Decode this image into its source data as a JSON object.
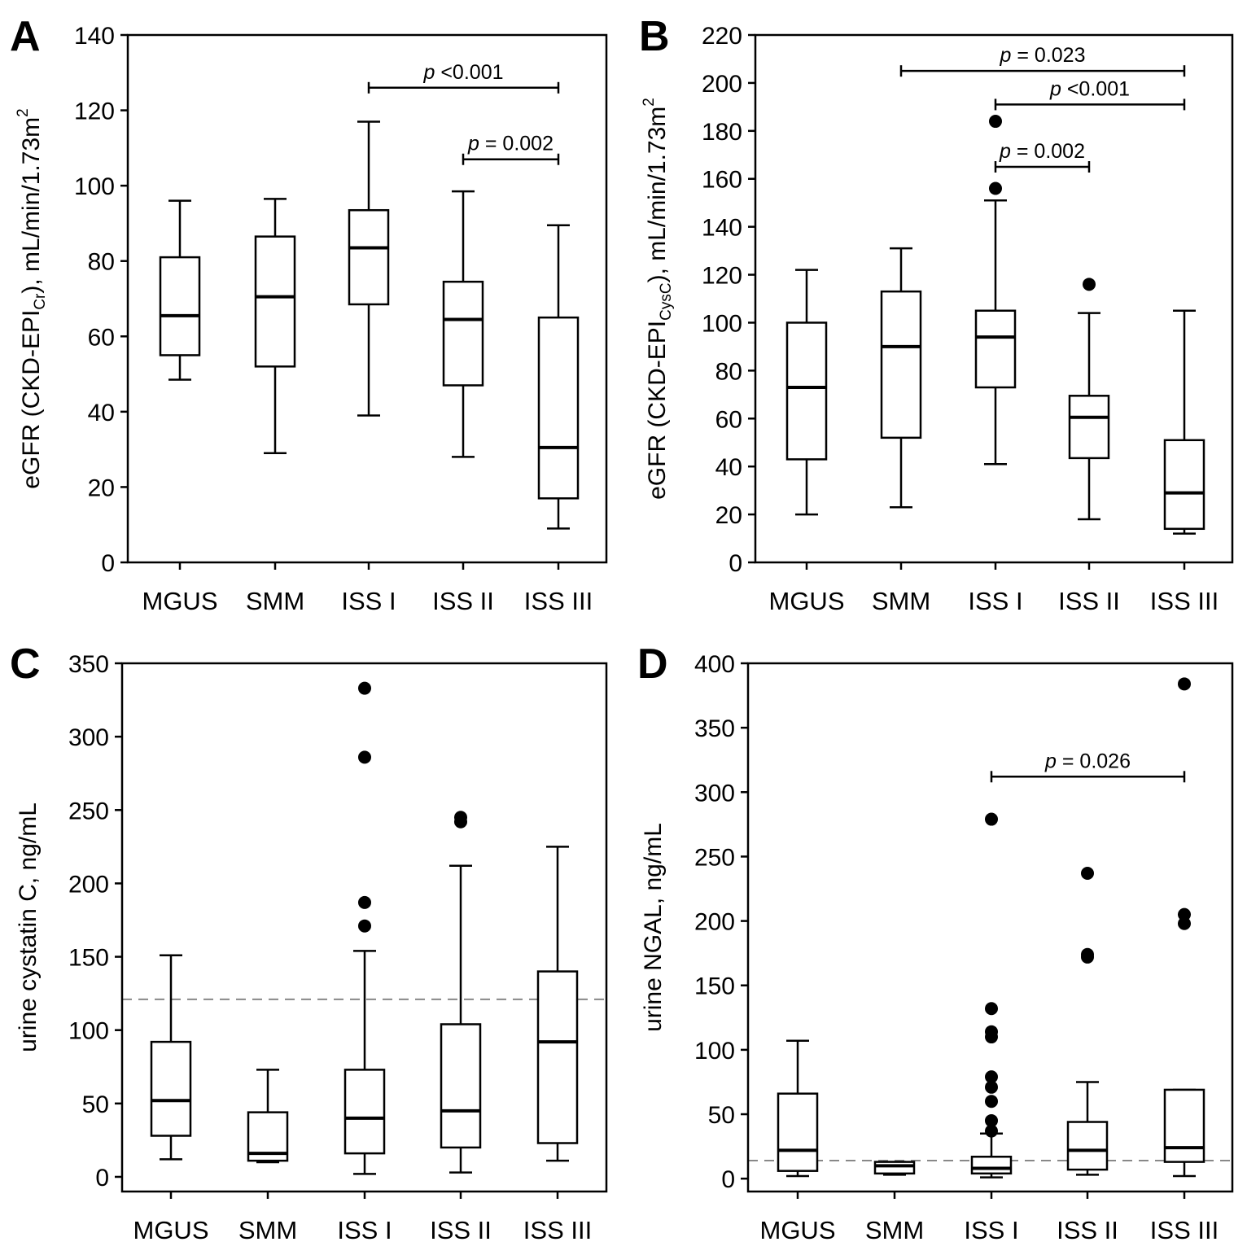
{
  "chart_data": [
    {
      "type": "box",
      "panel": "A",
      "ylabel": "eGFR (CKD-EPI",
      "ylabel_sub": "Cr",
      "ylabel_tail": "), mL/min/1.73m",
      "ylabel_sup": "2",
      "ylim": [
        0,
        140
      ],
      "yticks": [
        0,
        20,
        40,
        60,
        80,
        100,
        120,
        140
      ],
      "categories": [
        "MGUS",
        "SMM",
        "ISS I",
        "ISS II",
        "ISS III"
      ],
      "boxes": [
        {
          "min": 48.5,
          "q1": 55,
          "median": 65.5,
          "q3": 81,
          "max": 96,
          "outliers": []
        },
        {
          "min": 29,
          "q1": 52,
          "median": 70.5,
          "q3": 86.5,
          "max": 96.5,
          "outliers": []
        },
        {
          "min": 39,
          "q1": 68.5,
          "median": 83.5,
          "q3": 93.5,
          "max": 117,
          "outliers": []
        },
        {
          "min": 28,
          "q1": 47,
          "median": 64.5,
          "q3": 74.5,
          "max": 98.5,
          "outliers": []
        },
        {
          "min": 9,
          "q1": 17,
          "median": 30.5,
          "q3": 65,
          "max": 89.5,
          "outliers": []
        }
      ],
      "comparisons": [
        {
          "from": 2,
          "to": 4,
          "y": 126,
          "p": "p",
          "text": " <0.001"
        },
        {
          "from": 3,
          "to": 4,
          "y": 107,
          "p": "p",
          "text": " = 0.002"
        }
      ]
    },
    {
      "type": "box",
      "panel": "B",
      "ylabel": "eGFR (CKD-EPI",
      "ylabel_sub": "CysC",
      "ylabel_tail": "), mL/min/1.73m",
      "ylabel_sup": "2",
      "ylim": [
        0,
        220
      ],
      "yticks": [
        0,
        20,
        40,
        60,
        80,
        100,
        120,
        140,
        160,
        180,
        200,
        220
      ],
      "categories": [
        "MGUS",
        "SMM",
        "ISS I",
        "ISS II",
        "ISS III"
      ],
      "boxes": [
        {
          "min": 20,
          "q1": 43,
          "median": 73,
          "q3": 100,
          "max": 122,
          "outliers": []
        },
        {
          "min": 23,
          "q1": 52,
          "median": 90,
          "q3": 113,
          "max": 131,
          "outliers": []
        },
        {
          "min": 41,
          "q1": 73,
          "median": 94,
          "q3": 105,
          "max": 151,
          "outliers": [
            156,
            184
          ]
        },
        {
          "min": 18,
          "q1": 43.5,
          "median": 60.5,
          "q3": 69.5,
          "max": 104,
          "outliers": [
            116
          ]
        },
        {
          "min": 12,
          "q1": 14,
          "median": 29,
          "q3": 51,
          "max": 105,
          "outliers": []
        }
      ],
      "comparisons": [
        {
          "from": 1,
          "to": 4,
          "y": 205,
          "p": "p",
          "text": " = 0.023"
        },
        {
          "from": 2,
          "to": 4,
          "y": 191,
          "p": "p",
          "text": " <0.001"
        },
        {
          "from": 2,
          "to": 3,
          "y": 165,
          "p": "p",
          "text": " = 0.002"
        }
      ]
    },
    {
      "type": "box",
      "panel": "C",
      "ylabel": "urine cystatin C, ng/mL",
      "ylim": [
        -10,
        350
      ],
      "yticks": [
        0,
        50,
        100,
        150,
        200,
        250,
        300,
        350
      ],
      "ref_line": 121,
      "categories": [
        "MGUS",
        "SMM",
        "ISS I",
        "ISS II",
        "ISS III"
      ],
      "boxes": [
        {
          "min": 12,
          "q1": 28,
          "median": 52,
          "q3": 92,
          "max": 151,
          "outliers": []
        },
        {
          "min": 10,
          "q1": 11,
          "median": 16,
          "q3": 44,
          "max": 73,
          "outliers": []
        },
        {
          "min": 2,
          "q1": 16,
          "median": 40,
          "q3": 73,
          "max": 154,
          "outliers": [
            171,
            187,
            286,
            333
          ]
        },
        {
          "min": 3,
          "q1": 20,
          "median": 45,
          "q3": 104,
          "max": 212,
          "outliers": [
            242,
            245
          ]
        },
        {
          "min": 11,
          "q1": 23,
          "median": 92,
          "q3": 140,
          "max": 225,
          "outliers": []
        }
      ],
      "comparisons": []
    },
    {
      "type": "box",
      "panel": "D",
      "ylabel": "urine NGAL, ng/mL",
      "ylim": [
        -10,
        400
      ],
      "yticks": [
        0,
        50,
        100,
        150,
        200,
        250,
        300,
        350,
        400
      ],
      "ref_line": 14,
      "categories": [
        "MGUS",
        "SMM",
        "ISS I",
        "ISS II",
        "ISS III"
      ],
      "boxes": [
        {
          "min": 2,
          "q1": 6,
          "median": 22,
          "q3": 66,
          "max": 107,
          "outliers": []
        },
        {
          "min": 3,
          "q1": 4,
          "median": 10,
          "q3": 13,
          "max": 13,
          "outliers": []
        },
        {
          "min": 1,
          "q1": 4,
          "median": 8,
          "q3": 17,
          "max": 35,
          "outliers": [
            37,
            45,
            60,
            71,
            79,
            110,
            114,
            132,
            279
          ]
        },
        {
          "min": 3,
          "q1": 7,
          "median": 22,
          "q3": 44,
          "max": 75,
          "outliers": [
            172,
            174,
            237
          ]
        },
        {
          "min": 2,
          "q1": 13,
          "median": 24,
          "q3": 69,
          "max": 69,
          "outliers": [
            198,
            205,
            384
          ]
        }
      ],
      "comparisons": [
        {
          "from": 2,
          "to": 4,
          "y": 312,
          "p": "p",
          "text": " = 0.026"
        }
      ]
    }
  ]
}
